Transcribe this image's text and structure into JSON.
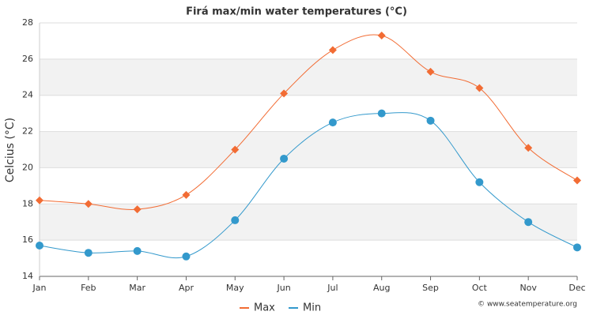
{
  "chart_data": {
    "type": "line",
    "title": "Firá max/min water temperatures (°C)",
    "y_label": "Celcius (°C)",
    "credit": "© www.seatemperature.org",
    "categories": [
      "Jan",
      "Feb",
      "Mar",
      "Apr",
      "May",
      "Jun",
      "Jul",
      "Aug",
      "Sep",
      "Oct",
      "Nov",
      "Dec"
    ],
    "series": [
      {
        "name": "Max",
        "color": "#f26c34",
        "marker": "diamond",
        "values": [
          18.2,
          18.0,
          17.7,
          18.5,
          21.0,
          24.1,
          26.5,
          27.3,
          25.3,
          24.4,
          21.1,
          19.3
        ]
      },
      {
        "name": "Min",
        "color": "#3399cc",
        "marker": "circle",
        "values": [
          15.7,
          15.3,
          15.4,
          15.1,
          17.1,
          20.5,
          22.5,
          23.0,
          22.6,
          19.2,
          17.0,
          15.6
        ]
      }
    ],
    "ylim": [
      14,
      28
    ],
    "yticks": [
      14,
      16,
      18,
      20,
      22,
      24,
      26,
      28
    ],
    "grid": true,
    "legend": "bottom"
  }
}
